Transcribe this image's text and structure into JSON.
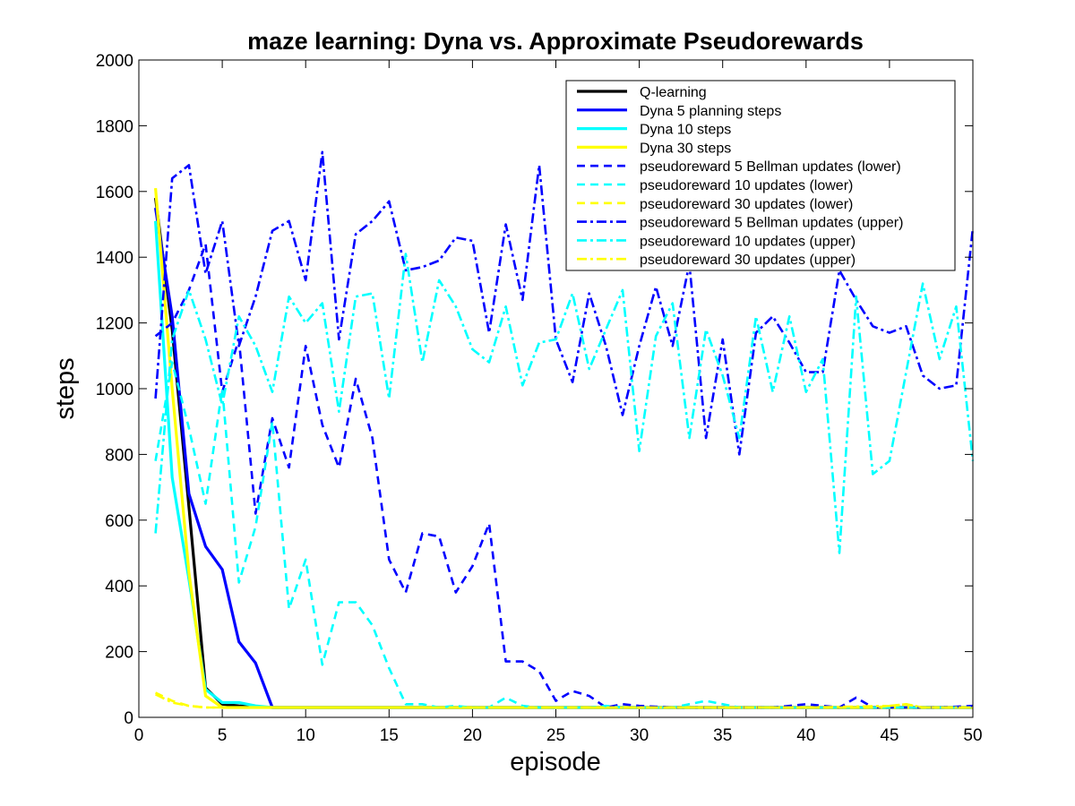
{
  "chart_data": {
    "type": "line",
    "title": "maze learning: Dyna vs. Approximate Pseudorewards",
    "xlabel": "episode",
    "ylabel": "steps",
    "xlim": [
      0,
      50
    ],
    "ylim": [
      0,
      2000
    ],
    "xticks": [
      0,
      5,
      10,
      15,
      20,
      25,
      30,
      35,
      40,
      45,
      50
    ],
    "yticks": [
      0,
      200,
      400,
      600,
      800,
      1000,
      1200,
      1400,
      1600,
      1800,
      2000
    ],
    "grid": false,
    "legend_position": "top-right",
    "series": [
      {
        "name": "Q-learning",
        "color": "#000000",
        "style": "solid",
        "x": [
          1,
          2,
          3,
          4,
          5,
          6,
          7,
          8,
          10,
          15,
          20,
          25,
          30,
          35,
          40,
          45,
          50
        ],
        "y": [
          1580,
          1180,
          640,
          90,
          40,
          35,
          32,
          30,
          30,
          30,
          30,
          30,
          30,
          30,
          30,
          30,
          30
        ]
      },
      {
        "name": "Dyna 5 planning steps",
        "color": "#0000ff",
        "style": "solid",
        "x": [
          1,
          2,
          3,
          4,
          5,
          6,
          7,
          8,
          10,
          15,
          20,
          25,
          30,
          35,
          40,
          45,
          50
        ],
        "y": [
          1550,
          1220,
          680,
          520,
          450,
          230,
          165,
          30,
          30,
          30,
          30,
          30,
          30,
          30,
          30,
          30,
          30
        ]
      },
      {
        "name": "Dyna 10 steps",
        "color": "#00ffff",
        "style": "solid",
        "x": [
          1,
          2,
          3,
          4,
          5,
          6,
          7,
          8,
          10,
          15,
          20,
          25,
          30,
          35,
          40,
          45,
          50
        ],
        "y": [
          1510,
          730,
          420,
          85,
          45,
          45,
          35,
          30,
          30,
          30,
          30,
          30,
          30,
          30,
          30,
          30,
          30
        ]
      },
      {
        "name": "Dyna 30 steps",
        "color": "#ffff00",
        "style": "solid",
        "x": [
          1,
          2,
          3,
          4,
          5,
          6,
          7,
          8,
          10,
          15,
          20,
          25,
          30,
          35,
          40,
          45,
          50
        ],
        "y": [
          1610,
          1000,
          440,
          65,
          30,
          30,
          30,
          30,
          30,
          30,
          30,
          30,
          30,
          30,
          30,
          30,
          30
        ]
      },
      {
        "name": "pseudoreward 5 Bellman updates (lower)",
        "color": "#0000ff",
        "style": "dashed",
        "x": [
          1,
          2,
          3,
          4,
          5,
          6,
          7,
          8,
          9,
          10,
          11,
          12,
          13,
          14,
          15,
          16,
          17,
          18,
          19,
          20,
          21,
          22,
          23,
          24,
          25,
          26,
          27,
          28,
          29,
          30,
          32,
          34,
          36,
          38,
          40,
          42,
          43,
          44,
          46,
          48,
          50
        ],
        "y": [
          1160,
          1200,
          1300,
          1440,
          990,
          1150,
          620,
          910,
          760,
          1130,
          890,
          760,
          1030,
          850,
          480,
          380,
          560,
          550,
          380,
          460,
          590,
          170,
          170,
          140,
          50,
          80,
          65,
          30,
          40,
          35,
          30,
          30,
          30,
          30,
          40,
          30,
          60,
          30,
          30,
          30,
          35
        ]
      },
      {
        "name": "pseudoreward 10 updates (lower)",
        "color": "#00ffff",
        "style": "dashed",
        "x": [
          1,
          2,
          3,
          4,
          5,
          6,
          7,
          8,
          9,
          10,
          11,
          12,
          13,
          14,
          15,
          16,
          17,
          18,
          19,
          20,
          21,
          22,
          23,
          24,
          25,
          26,
          27,
          28,
          29,
          30,
          32,
          34,
          36,
          38,
          40,
          42,
          44,
          46,
          48,
          50
        ],
        "y": [
          780,
          1080,
          880,
          650,
          1000,
          410,
          580,
          900,
          330,
          480,
          160,
          350,
          350,
          280,
          150,
          40,
          40,
          30,
          35,
          30,
          30,
          60,
          35,
          30,
          30,
          30,
          30,
          35,
          30,
          30,
          30,
          50,
          30,
          30,
          30,
          30,
          30,
          30,
          30,
          30
        ]
      },
      {
        "name": "pseudoreward 30 updates (lower)",
        "color": "#ffff00",
        "style": "dashed",
        "x": [
          1,
          2,
          3,
          4,
          5,
          10,
          15,
          20,
          25,
          30,
          35,
          40,
          44,
          45,
          46,
          47,
          48,
          50
        ],
        "y": [
          75,
          50,
          35,
          30,
          30,
          30,
          30,
          30,
          30,
          30,
          30,
          30,
          30,
          35,
          40,
          30,
          30,
          30
        ]
      },
      {
        "name": "pseudoreward 5 Bellman updates (upper)",
        "color": "#0000ff",
        "style": "dashdot",
        "x": [
          1,
          2,
          3,
          4,
          5,
          6,
          7,
          8,
          9,
          10,
          11,
          12,
          13,
          14,
          15,
          16,
          17,
          18,
          19,
          20,
          21,
          22,
          23,
          24,
          25,
          26,
          27,
          28,
          29,
          30,
          31,
          32,
          33,
          34,
          35,
          36,
          37,
          38,
          39,
          40,
          41,
          42,
          43,
          44,
          45,
          46,
          47,
          48,
          49,
          50
        ],
        "y": [
          970,
          1640,
          1680,
          1350,
          1510,
          1130,
          1280,
          1480,
          1510,
          1330,
          1720,
          1150,
          1470,
          1510,
          1570,
          1360,
          1370,
          1390,
          1460,
          1450,
          1170,
          1500,
          1270,
          1680,
          1150,
          1020,
          1290,
          1130,
          920,
          1130,
          1310,
          1130,
          1380,
          850,
          1150,
          800,
          1170,
          1220,
          1140,
          1050,
          1050,
          1360,
          1270,
          1190,
          1170,
          1190,
          1040,
          1000,
          1010,
          1490
        ]
      },
      {
        "name": "pseudoreward 10 updates (upper)",
        "color": "#00ffff",
        "style": "dashdot",
        "x": [
          1,
          2,
          3,
          4,
          5,
          6,
          7,
          8,
          9,
          10,
          11,
          12,
          13,
          14,
          15,
          16,
          17,
          18,
          19,
          20,
          21,
          22,
          23,
          24,
          25,
          26,
          27,
          28,
          29,
          30,
          31,
          32,
          33,
          34,
          35,
          36,
          37,
          38,
          39,
          40,
          41,
          42,
          43,
          44,
          45,
          46,
          47,
          48,
          49,
          50
        ],
        "y": [
          560,
          1150,
          1300,
          1150,
          950,
          1220,
          1130,
          990,
          1280,
          1200,
          1260,
          930,
          1280,
          1290,
          970,
          1410,
          1080,
          1330,
          1250,
          1120,
          1080,
          1250,
          1010,
          1140,
          1150,
          1290,
          1060,
          1180,
          1300,
          810,
          1160,
          1260,
          850,
          1180,
          1040,
          850,
          1220,
          990,
          1220,
          990,
          1090,
          500,
          1280,
          740,
          780,
          1050,
          1320,
          1090,
          1250,
          780
        ]
      },
      {
        "name": "pseudoreward 30 updates (upper)",
        "color": "#ffff00",
        "style": "dashdot",
        "x": [
          1,
          2,
          3,
          4,
          5,
          10,
          15,
          20,
          25,
          30,
          35,
          40,
          45,
          46,
          47,
          50
        ],
        "y": [
          70,
          45,
          35,
          30,
          30,
          30,
          30,
          30,
          30,
          30,
          30,
          30,
          35,
          40,
          30,
          30
        ]
      }
    ]
  }
}
